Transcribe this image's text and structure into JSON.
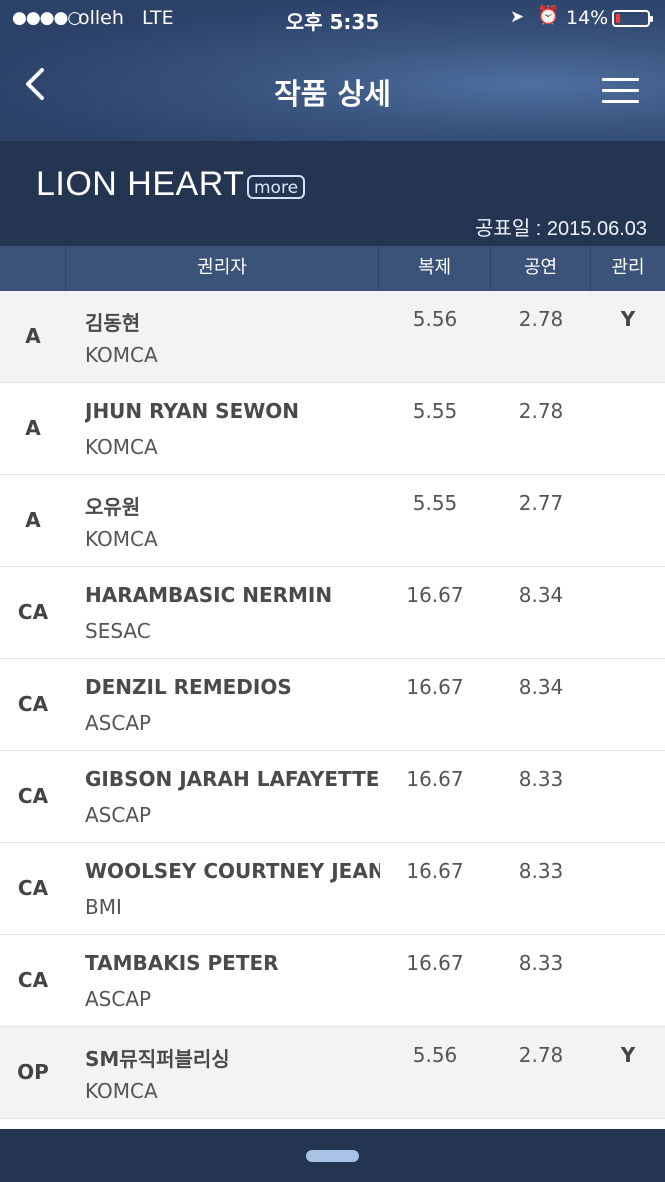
{
  "status_bar": {
    "signal": "●●●●○",
    "carrier": "olleh",
    "network": "LTE",
    "time": "오후 5:35",
    "battery_percent": "14%",
    "battery_level": 0.14,
    "battery_color": "#ff3b30"
  },
  "nav": {
    "back_icon": "chevron-left-icon",
    "title": "작품 상세",
    "menu_icon": "hamburger-menu-icon"
  },
  "song": {
    "title": "LION HEART",
    "more_label": "more",
    "announce_date": "공표일 : 2015.06.03"
  },
  "columns": {
    "type": "",
    "holder": "권리자",
    "reproduction": "복제",
    "performance": "공연",
    "management": "관리"
  },
  "rows": [
    {
      "type": "A",
      "holder": "김동현",
      "society": "KOMCA",
      "repro": "5.56",
      "perf": "2.78",
      "mgmt": "Y",
      "shaded": true
    },
    {
      "type": "A",
      "holder": "JHUN RYAN SEWON",
      "society": "KOMCA",
      "repro": "5.55",
      "perf": "2.78",
      "mgmt": "",
      "shaded": false
    },
    {
      "type": "A",
      "holder": "오유원",
      "society": "KOMCA",
      "repro": "5.55",
      "perf": "2.77",
      "mgmt": "",
      "shaded": false
    },
    {
      "type": "CA",
      "holder": "HARAMBASIC NERMIN",
      "society": "SESAC",
      "repro": "16.67",
      "perf": "8.34",
      "mgmt": "",
      "shaded": false
    },
    {
      "type": "CA",
      "holder": "DENZIL REMEDIOS",
      "society": "ASCAP",
      "repro": "16.67",
      "perf": "8.34",
      "mgmt": "",
      "shaded": false
    },
    {
      "type": "CA",
      "holder": "GIBSON JARAH LAFAYETTE",
      "society": "ASCAP",
      "repro": "16.67",
      "perf": "8.33",
      "mgmt": "",
      "shaded": false
    },
    {
      "type": "CA",
      "holder": "WOOLSEY COURTNEY JEANNE",
      "society": "BMI",
      "repro": "16.67",
      "perf": "8.33",
      "mgmt": "",
      "shaded": false
    },
    {
      "type": "CA",
      "holder": "TAMBAKIS PETER",
      "society": "ASCAP",
      "repro": "16.67",
      "perf": "8.33",
      "mgmt": "",
      "shaded": false
    },
    {
      "type": "OP",
      "holder": "SM뮤직퍼블리싱",
      "society": "KOMCA",
      "repro": "5.56",
      "perf": "2.78",
      "mgmt": "Y",
      "shaded": true
    }
  ]
}
